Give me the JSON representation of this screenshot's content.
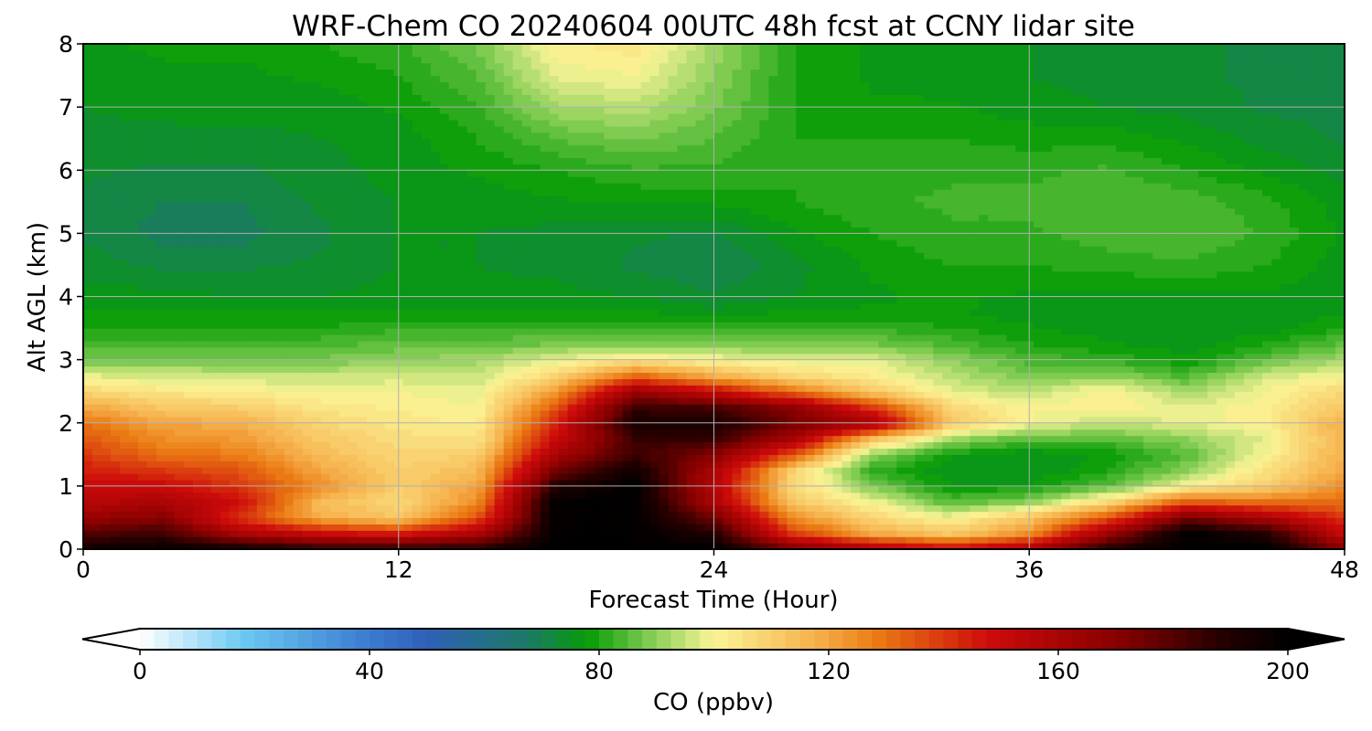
{
  "chart_data": {
    "type": "heatmap",
    "title": "WRF-Chem CO  20240604 00UTC 48h fcst at CCNY lidar site",
    "xlabel": "Forecast Time (Hour)",
    "ylabel": "Alt AGL (km)",
    "xlim": [
      0,
      48
    ],
    "ylim": [
      0,
      8
    ],
    "xticks": [
      0,
      12,
      24,
      36,
      48
    ],
    "yticks": [
      0,
      1,
      2,
      3,
      4,
      5,
      6,
      7,
      8
    ],
    "grid": true,
    "x": [
      0,
      3,
      6,
      9,
      12,
      15,
      18,
      21,
      24,
      27,
      30,
      33,
      36,
      39,
      42,
      45,
      48
    ],
    "y": [
      0,
      0.25,
      0.5,
      0.75,
      1,
      1.25,
      1.5,
      1.75,
      2,
      2.25,
      2.5,
      2.75,
      3,
      3.25,
      3.5,
      3.75,
      4,
      4.5,
      5,
      5.5,
      6,
      6.5,
      7,
      7.5,
      8
    ],
    "z": [
      [
        195,
        198,
        195,
        190,
        190,
        190,
        200,
        200,
        200,
        175,
        160,
        150,
        160,
        190,
        200,
        200,
        170
      ],
      [
        180,
        185,
        160,
        150,
        145,
        160,
        200,
        200,
        190,
        140,
        120,
        112,
        125,
        165,
        200,
        190,
        150
      ],
      [
        165,
        170,
        140,
        118,
        112,
        135,
        200,
        200,
        175,
        125,
        108,
        100,
        112,
        135,
        175,
        160,
        140
      ],
      [
        155,
        160,
        148,
        115,
        108,
        125,
        200,
        200,
        160,
        112,
        100,
        85,
        90,
        108,
        135,
        130,
        130
      ],
      [
        150,
        150,
        140,
        125,
        110,
        120,
        190,
        200,
        155,
        108,
        88,
        78,
        78,
        85,
        100,
        110,
        125
      ],
      [
        145,
        140,
        135,
        120,
        110,
        115,
        175,
        195,
        160,
        110,
        82,
        75,
        75,
        80,
        90,
        105,
        120
      ],
      [
        140,
        130,
        128,
        115,
        108,
        110,
        160,
        185,
        170,
        135,
        90,
        78,
        75,
        78,
        85,
        100,
        118
      ],
      [
        135,
        125,
        122,
        112,
        106,
        105,
        150,
        185,
        185,
        160,
        115,
        92,
        85,
        85,
        90,
        98,
        118
      ],
      [
        130,
        120,
        118,
        108,
        104,
        102,
        145,
        192,
        192,
        175,
        162,
        112,
        100,
        95,
        98,
        102,
        118
      ],
      [
        120,
        112,
        110,
        104,
        102,
        100,
        135,
        185,
        182,
        168,
        140,
        108,
        100,
        102,
        98,
        102,
        112
      ],
      [
        108,
        104,
        102,
        100,
        100,
        98,
        122,
        165,
        150,
        130,
        112,
        98,
        94,
        102,
        92,
        100,
        108
      ],
      [
        98,
        96,
        95,
        95,
        96,
        95,
        108,
        132,
        118,
        108,
        102,
        94,
        88,
        90,
        84,
        96,
        100
      ],
      [
        88,
        88,
        88,
        88,
        90,
        92,
        98,
        105,
        100,
        98,
        98,
        90,
        84,
        82,
        78,
        86,
        92
      ],
      [
        84,
        84,
        84,
        84,
        86,
        86,
        88,
        88,
        88,
        88,
        88,
        84,
        80,
        78,
        76,
        80,
        86
      ],
      [
        80,
        80,
        80,
        80,
        82,
        82,
        82,
        82,
        82,
        82,
        82,
        80,
        78,
        76,
        76,
        76,
        80
      ],
      [
        78,
        78,
        78,
        78,
        78,
        78,
        78,
        78,
        76,
        78,
        78,
        78,
        76,
        76,
        76,
        76,
        77
      ],
      [
        76,
        76,
        75,
        75,
        76,
        76,
        76,
        75,
        73,
        75,
        77,
        78,
        77,
        77,
        77,
        77,
        76
      ],
      [
        74,
        72,
        72,
        73,
        75,
        75,
        74,
        72,
        70,
        74,
        78,
        80,
        80,
        81,
        82,
        80,
        76
      ],
      [
        72,
        69,
        69,
        72,
        75,
        75,
        74,
        73,
        72,
        77,
        80,
        82,
        82,
        84,
        85,
        82,
        77
      ],
      [
        72,
        70,
        70,
        73,
        75,
        76,
        77,
        78,
        78,
        80,
        82,
        83,
        83,
        85,
        84,
        81,
        76
      ],
      [
        73,
        72,
        72,
        74,
        76,
        78,
        80,
        82,
        82,
        80,
        81,
        82,
        82,
        83,
        80,
        77,
        74
      ],
      [
        74,
        74,
        74,
        75,
        76,
        80,
        85,
        88,
        85,
        80,
        80,
        80,
        79,
        79,
        77,
        74,
        72
      ],
      [
        75,
        76,
        76,
        76,
        78,
        82,
        92,
        94,
        88,
        80,
        78,
        78,
        76,
        75,
        74,
        72,
        72
      ],
      [
        76,
        77,
        77,
        78,
        80,
        85,
        98,
        100,
        90,
        80,
        77,
        76,
        75,
        74,
        73,
        72,
        72
      ],
      [
        77,
        78,
        78,
        80,
        82,
        88,
        102,
        104,
        92,
        80,
        77,
        76,
        75,
        74,
        73,
        72,
        72
      ]
    ],
    "colorbar": {
      "label": "CO  (ppbv)",
      "min": 0,
      "max": 200,
      "ticks": [
        0,
        40,
        80,
        120,
        160,
        200
      ],
      "extend": "both",
      "stops": [
        {
          "v": 0,
          "c": "#ffffff"
        },
        {
          "v": 18,
          "c": "#6cc9f2"
        },
        {
          "v": 40,
          "c": "#3b7bd0"
        },
        {
          "v": 50,
          "c": "#2f5fb8"
        },
        {
          "v": 68,
          "c": "#1b7b63"
        },
        {
          "v": 78,
          "c": "#069c06"
        },
        {
          "v": 90,
          "c": "#8ed05a"
        },
        {
          "v": 100,
          "c": "#fbf596"
        },
        {
          "v": 118,
          "c": "#f6b04c"
        },
        {
          "v": 128,
          "c": "#eb7d14"
        },
        {
          "v": 148,
          "c": "#cd0a0a"
        },
        {
          "v": 170,
          "c": "#8a0000"
        },
        {
          "v": 188,
          "c": "#260000"
        },
        {
          "v": 200,
          "c": "#000000"
        }
      ]
    }
  }
}
